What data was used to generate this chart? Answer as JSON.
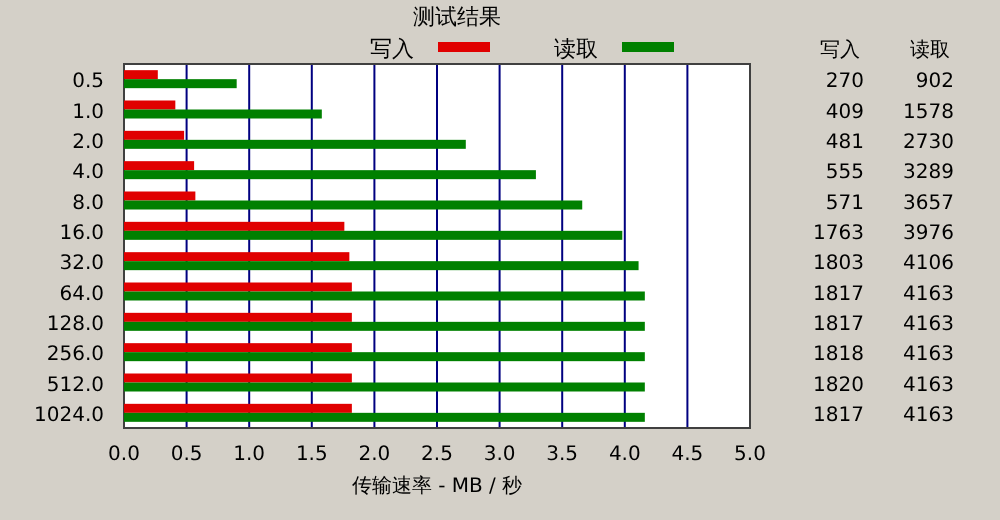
{
  "chart_data": {
    "type": "bar",
    "orientation": "horizontal",
    "title": "测试结果",
    "xlabel": "传输速率 - MB / 秒",
    "categories": [
      "0.5",
      "1.0",
      "2.0",
      "4.0",
      "8.0",
      "16.0",
      "32.0",
      "64.0",
      "128.0",
      "256.0",
      "512.0",
      "1024.0"
    ],
    "series": [
      {
        "name": "写入",
        "color": "#e00000",
        "values": [
          0.27,
          0.41,
          0.48,
          0.56,
          0.57,
          1.76,
          1.8,
          1.82,
          1.82,
          1.82,
          1.82,
          1.82
        ]
      },
      {
        "name": "读取",
        "color": "#008000",
        "values": [
          0.9,
          1.58,
          2.73,
          3.29,
          3.66,
          3.98,
          4.11,
          4.16,
          4.16,
          4.16,
          4.16,
          4.16
        ]
      }
    ],
    "annotations": [
      "270",
      "902",
      "409",
      "1578",
      "481",
      "2730",
      "555",
      "3289",
      "571",
      "3657",
      "1763",
      "3976",
      "1803",
      "4106",
      "1817",
      "4163",
      "1817",
      "4163",
      "1818",
      "4163",
      "1820",
      "4163",
      "1817",
      "4163"
    ],
    "xlim": [
      0,
      5
    ],
    "xticks": [
      {
        "value": 0,
        "label": "0.0"
      },
      {
        "value": 0.5,
        "label": "0.5"
      },
      {
        "value": 1,
        "label": "1.0"
      },
      {
        "value": 1.5,
        "label": "1.5"
      },
      {
        "value": 2,
        "label": "2.0"
      },
      {
        "value": 2.5,
        "label": "2.5"
      },
      {
        "value": 3,
        "label": "3.0"
      },
      {
        "value": 3.5,
        "label": "3.5"
      },
      {
        "value": 4,
        "label": "4.0"
      },
      {
        "value": 4.5,
        "label": "4.5"
      },
      {
        "value": 5,
        "label": "5.0"
      }
    ],
    "grid": "x",
    "legend": "top"
  }
}
